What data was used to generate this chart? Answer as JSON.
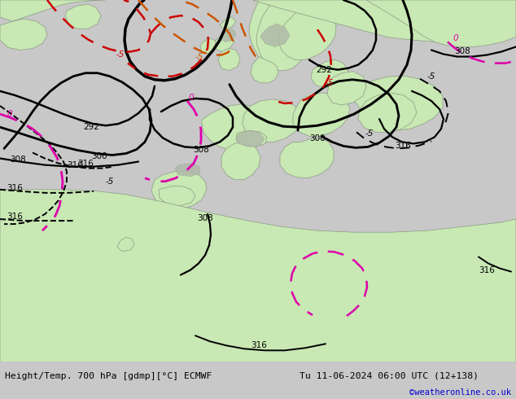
{
  "title_left": "Height/Temp. 700 hPa [gdmp][°C] ECMWF",
  "title_right": "Tu 11-06-2024 06:00 UTC (12+138)",
  "watermark": "©weatheronline.co.uk",
  "bg_color": "#c8c8c8",
  "land_color": "#c8e8b4",
  "sea_color": "#c8c8c8",
  "highland_color": "#b0b8a8",
  "bottom_bar_color": "#d0d0d0",
  "text_color": "#000000",
  "watermark_color": "#0000cc",
  "figsize": [
    6.34,
    4.9
  ],
  "dpi": 100
}
